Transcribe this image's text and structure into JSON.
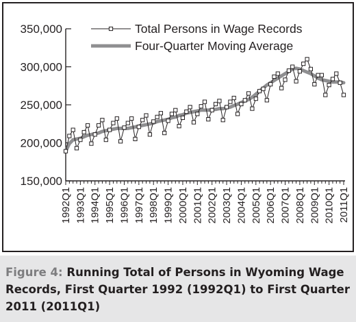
{
  "chart_data": {
    "type": "line",
    "title": "",
    "xlabel": "",
    "ylabel": "",
    "ylim": [
      150000,
      350000
    ],
    "yticks": [
      150000,
      200000,
      250000,
      300000,
      350000
    ],
    "ytick_labels": [
      "150,000",
      "200,000",
      "250,000",
      "300,000",
      "350,000"
    ],
    "x_tick_labels": [
      "1992Q1",
      "1993Q1",
      "1994Q1",
      "1995Q1",
      "1996Q1",
      "1997Q1",
      "1998Q1",
      "1999Q1",
      "2000Q1",
      "2001Q1",
      "2002Q1",
      "2003Q1",
      "2004Q1",
      "2005Q1",
      "2006Q1",
      "2007Q1",
      "2008Q1",
      "2009Q1",
      "2010Q1",
      "2011Q1"
    ],
    "grid": false,
    "legend_position": "top-right",
    "series": [
      {
        "name": "Total Persons in Wage Records",
        "style": "line-with-square-markers",
        "color": "#231f20",
        "values": [
          189000,
          209000,
          217000,
          193000,
          204000,
          214000,
          223000,
          199000,
          211000,
          223000,
          230000,
          204000,
          217000,
          226000,
          232000,
          202000,
          220000,
          226000,
          232000,
          205000,
          221000,
          230000,
          236000,
          211000,
          228000,
          234000,
          239000,
          213000,
          229000,
          238000,
          243000,
          222000,
          233000,
          241000,
          247000,
          227000,
          238000,
          248000,
          254000,
          231000,
          243000,
          251000,
          255000,
          230000,
          247000,
          254000,
          259000,
          238000,
          251000,
          256000,
          265000,
          245000,
          258000,
          268000,
          271000,
          256000,
          277000,
          287000,
          291000,
          272000,
          283000,
          295000,
          300000,
          281000,
          294000,
          304000,
          310000,
          297000,
          277000,
          289000,
          289000,
          263000,
          276000,
          284000,
          291000,
          279000,
          263000
        ]
      },
      {
        "name": "Four-Quarter Moving Average",
        "style": "thick-gray-line",
        "color": "#8f8f91",
        "values": [
          189000,
          199000,
          204000,
          205000,
          206000,
          208000,
          210000,
          211000,
          212000,
          213000,
          215000,
          216000,
          217000,
          218000,
          219000,
          219000,
          219000,
          219000,
          220000,
          221000,
          222000,
          223000,
          224000,
          225000,
          226000,
          228000,
          229000,
          230000,
          231000,
          233000,
          234000,
          236000,
          237000,
          239000,
          240000,
          241000,
          242000,
          243000,
          243000,
          243000,
          244000,
          244000,
          245000,
          245000,
          246000,
          247000,
          249000,
          251000,
          253000,
          255000,
          257000,
          260000,
          264000,
          268000,
          272000,
          276000,
          279000,
          282000,
          285000,
          288000,
          291000,
          294000,
          297000,
          298000,
          297000,
          295000,
          293000,
          291000,
          288000,
          285000,
          283000,
          282000,
          281000,
          280000,
          280000,
          280000,
          279000
        ]
      }
    ]
  },
  "caption": {
    "label": "Figure 4:",
    "title": "Running Total of Persons in Wyoming Wage Records, First Quarter 1992 (1992Q1) to First Quarter 2011 (2011Q1)"
  }
}
